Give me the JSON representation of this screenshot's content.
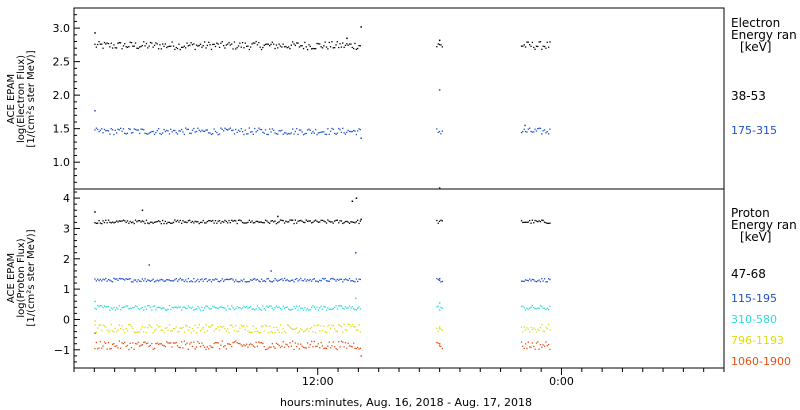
{
  "chart_data": [
    {
      "type": "scatter",
      "panel": "electron",
      "ylabel": [
        "ACE EPAM",
        "log(Electron Flux)",
        "[1/(cm²s ster MeV)]"
      ],
      "ylim": [
        0.6,
        3.3
      ],
      "yticks": [
        1.0,
        1.5,
        2.0,
        2.5,
        3.0
      ],
      "ytick_labels": [
        "1.0",
        "1.5",
        "2.0",
        "2.5",
        "3.0"
      ],
      "legend_title": [
        "Electron",
        "Energy ran",
        "[keV]"
      ],
      "series": [
        {
          "name": "38-53",
          "color": "#000000",
          "base": 2.74,
          "jitter": 0.06,
          "spikes": [
            [
              3.0,
              2.93
            ],
            [
              40.2,
              2.85
            ],
            [
              42.3,
              3.02
            ],
            [
              53.9,
              2.82
            ]
          ]
        },
        {
          "name": "175-315",
          "color": "#1e50c8",
          "base": 1.46,
          "jitter": 0.05,
          "spikes": [
            [
              3.0,
              1.77
            ],
            [
              42.3,
              1.36
            ],
            [
              53.9,
              2.08
            ],
            [
              53.9,
              0.62
            ],
            [
              66.5,
              1.55
            ]
          ]
        }
      ]
    },
    {
      "type": "scatter",
      "panel": "proton",
      "ylabel": [
        "ACE EPAM",
        "log(Proton Flux)",
        "[1/(cm²s ster MeV)]"
      ],
      "ylim": [
        -1.6,
        4.3
      ],
      "yticks": [
        -1,
        0,
        1,
        2,
        3,
        4
      ],
      "ytick_labels": [
        "−1",
        "0",
        "1",
        "2",
        "3",
        "4"
      ],
      "legend_title": [
        "Proton",
        "Energy ran",
        "[keV]"
      ],
      "series": [
        {
          "name": "47-68",
          "color": "#000000",
          "base": 3.22,
          "jitter": 0.06,
          "spikes": [
            [
              3.0,
              3.55
            ],
            [
              10.0,
              3.6
            ],
            [
              30.0,
              3.4
            ],
            [
              41.0,
              3.9
            ],
            [
              41.6,
              4.0
            ],
            [
              42.3,
              3.3
            ]
          ]
        },
        {
          "name": "115-195",
          "color": "#1e50c8",
          "base": 1.3,
          "jitter": 0.06,
          "spikes": [
            [
              11.0,
              1.8
            ],
            [
              29.0,
              1.6
            ],
            [
              41.5,
              2.2
            ],
            [
              53.9,
              1.35
            ]
          ]
        },
        {
          "name": "310-580",
          "color": "#28dcdc",
          "base": 0.38,
          "jitter": 0.08,
          "spikes": [
            [
              3.0,
              0.6
            ],
            [
              41.5,
              0.7
            ],
            [
              53.9,
              0.55
            ]
          ]
        },
        {
          "name": "796-1193",
          "color": "#dcdc14",
          "base": -0.3,
          "jitter": 0.14,
          "spikes": [
            [
              3.0,
              -0.05
            ],
            [
              53.9,
              -0.25
            ]
          ]
        },
        {
          "name": "1060-1900",
          "color": "#e65014",
          "base": -0.85,
          "jitter": 0.14,
          "spikes": [
            [
              3.0,
              -0.45
            ],
            [
              42.3,
              -1.2
            ],
            [
              53.9,
              -0.8
            ]
          ]
        }
      ]
    }
  ],
  "x_axis": {
    "xlabel": "hours:minutes, Aug. 16, 2018 - Aug. 17, 2018",
    "hours_start": 0,
    "hours_end": 96,
    "major_ticks": [
      {
        "hour": 36,
        "label": "12:00"
      },
      {
        "hour": 72,
        "label": "0:00"
      }
    ],
    "minor_tick_every_hours": 3,
    "data_segments": [
      [
        3.0,
        42.3
      ],
      [
        53.5,
        54.3
      ],
      [
        66.0,
        70.2
      ]
    ]
  }
}
